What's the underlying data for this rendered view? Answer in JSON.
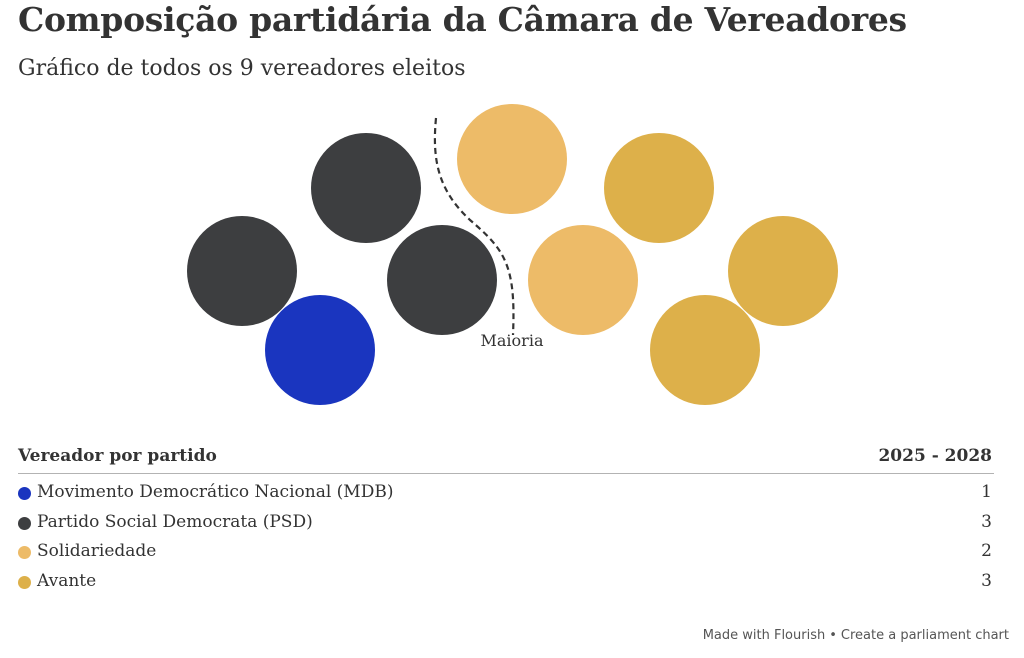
{
  "title": "Composição partidária da Câmara de Vereadores",
  "subtitle": "Gráfico de todos os 9 vereadores eleitos",
  "table": {
    "header_party": "Vereador por partido",
    "header_period": "2025 - 2028"
  },
  "chart_data": {
    "type": "parliament",
    "total_seats": 9,
    "majority_label": "Maioria",
    "parties": [
      {
        "name": "Movimento Democrático Nacional (MDB)",
        "seats": 1,
        "color": "#1a35bf"
      },
      {
        "name": "Partido Social Democrata (PSD)",
        "seats": 3,
        "color": "#3d3e40"
      },
      {
        "name": "Solidariedade",
        "seats": 2,
        "color": "#edbb68"
      },
      {
        "name": "Avante",
        "seats": 3,
        "color": "#ddb04a"
      }
    ]
  },
  "footer": {
    "made_with": "Made with Flourish",
    "separator": "•",
    "create_link": "Create a parliament chart"
  }
}
